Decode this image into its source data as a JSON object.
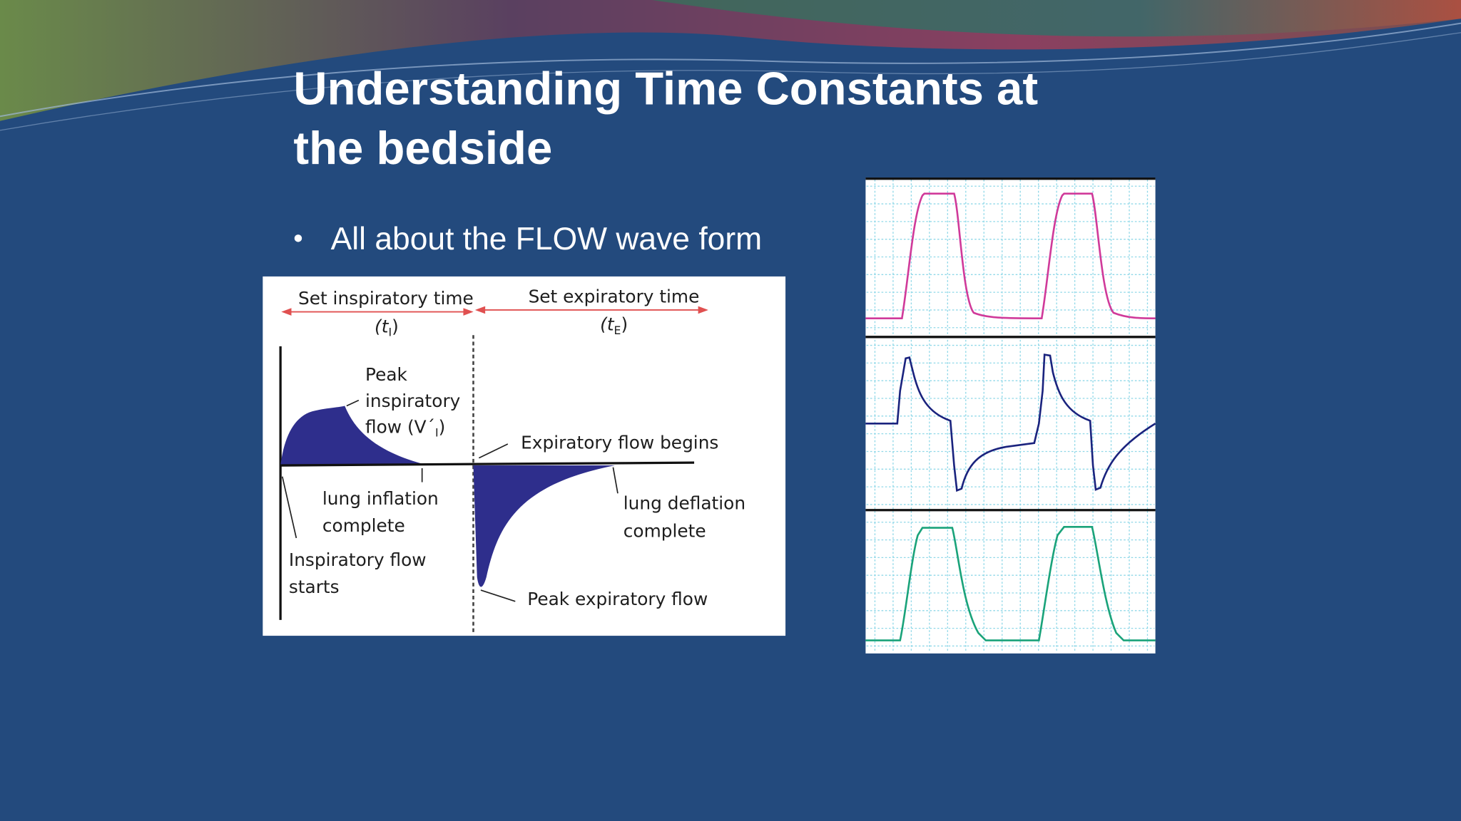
{
  "slide": {
    "title": [
      "Understanding Time Constants at",
      "the bedside"
    ],
    "bullets": [
      "All about the FLOW wave form"
    ],
    "diagram": {
      "inspiratory_time": {
        "label": "Set inspiratory time",
        "symbol": [
          "(t",
          "I",
          ")"
        ]
      },
      "expiratory_time": {
        "label": "Set expiratory time",
        "symbol": [
          "(t",
          "E",
          ")"
        ]
      },
      "peak_inspiratory": {
        "lines": [
          "Peak",
          "inspiratory"
        ],
        "last": [
          "flow (V´",
          "I",
          ")"
        ]
      },
      "expiratory_begins": "Expiratory flow begins",
      "lung_inflation": [
        "lung inflation",
        "complete"
      ],
      "lung_deflation": [
        "lung deflation",
        "complete"
      ],
      "inspiratory_starts": [
        "Inspiratory flow",
        "starts"
      ],
      "peak_expiratory": "Peak expiratory flow"
    }
  }
}
